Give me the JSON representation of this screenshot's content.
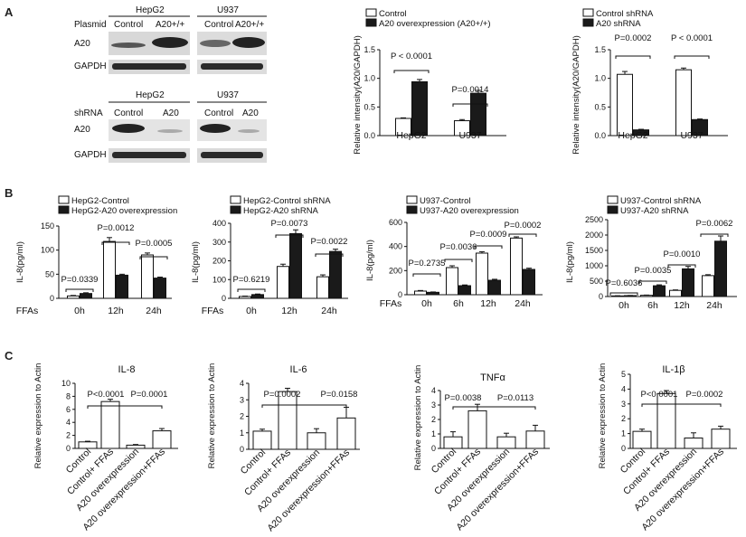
{
  "panel_labels": {
    "a": "A",
    "b": "B",
    "c": "C"
  },
  "colors": {
    "bar_open": "#ffffff",
    "bar_filled": "#1a1a1a",
    "axis": "#111111"
  },
  "blots": [
    {
      "labels": {
        "top_left": "HepG2",
        "top_right": "U937",
        "row_label": "Plasmid",
        "lane_labels": [
          "Control",
          "A20+/+",
          "Control",
          "A20+/+"
        ],
        "bands": [
          "A20",
          "GAPDH"
        ]
      }
    },
    {
      "labels": {
        "top_left": "HepG2",
        "top_right": "U937",
        "row_label": "shRNA",
        "lane_labels": [
          "Control",
          "A20",
          "Control",
          "A20"
        ],
        "bands": [
          "A20",
          "GAPDH"
        ]
      }
    }
  ],
  "chart_data": [
    {
      "id": "A_over",
      "type": "bar",
      "ylabel": "Relative intensity(A20/GAPDH)",
      "categories": [
        "HepG2",
        "U937"
      ],
      "ylim": [
        0,
        1.5
      ],
      "yticks": [
        "0.0",
        "0.5",
        "1.0",
        "1.5"
      ],
      "series": [
        {
          "name": "Control",
          "values": [
            0.3,
            0.26
          ],
          "errors": [
            0.01,
            0.02
          ]
        },
        {
          "name": "A20 overexpression (A20+/+)",
          "values": [
            0.94,
            0.74
          ],
          "errors": [
            0.04,
            0.05
          ]
        }
      ],
      "pvalues": [
        "P < 0.0001",
        "P=0.0014"
      ]
    },
    {
      "id": "A_sh",
      "type": "bar",
      "ylabel": "Relative intensity(A20/GAPDH)",
      "categories": [
        "HepG2",
        "U937"
      ],
      "ylim": [
        0,
        1.5
      ],
      "yticks": [
        "0.0",
        "0.5",
        "1.0",
        "1.5"
      ],
      "series": [
        {
          "name": "Control shRNA",
          "values": [
            1.07,
            1.15
          ],
          "errors": [
            0.05,
            0.03
          ]
        },
        {
          "name": "A20 shRNA",
          "values": [
            0.1,
            0.28
          ],
          "errors": [
            0.01,
            0.01
          ]
        }
      ],
      "pvalues": [
        "P=0.0002",
        "P < 0.0001"
      ]
    },
    {
      "id": "B1",
      "type": "bar",
      "ylabel": "IL-8(pg/ml)",
      "xprefix": "FFAs",
      "categories": [
        "0h",
        "12h",
        "24h"
      ],
      "ylim": [
        0,
        150
      ],
      "yticks": [
        "0",
        "50",
        "100",
        "150"
      ],
      "series": [
        {
          "name": "HepG2-Control",
          "values": [
            5,
            118,
            90
          ],
          "errors": [
            1,
            8,
            4
          ]
        },
        {
          "name": "HepG2-A20 overexpression",
          "values": [
            10,
            48,
            42
          ],
          "errors": [
            1.5,
            2,
            2
          ]
        }
      ],
      "pvalues": [
        "P=0.0339",
        "P=0.0012",
        "P=0.0005"
      ]
    },
    {
      "id": "B2",
      "type": "bar",
      "ylabel": "IL-8(pg/ml)",
      "xprefix": "FFAs",
      "categories": [
        "0h",
        "12h",
        "24h"
      ],
      "ylim": [
        0,
        400
      ],
      "yticks": [
        "0",
        "100",
        "200",
        "300",
        "400"
      ],
      "series": [
        {
          "name": "HepG2-Control shRNA",
          "values": [
            10,
            170,
            115
          ],
          "errors": [
            2,
            12,
            10
          ]
        },
        {
          "name": "HepG2-A20 shRNA",
          "values": [
            20,
            345,
            250
          ],
          "errors": [
            3,
            20,
            12
          ]
        }
      ],
      "pvalues": [
        "P=0.6219",
        "P=0.0073",
        "P=0.0022"
      ]
    },
    {
      "id": "B3",
      "type": "bar",
      "ylabel": "IL-8(pg/ml)",
      "xprefix": "FFAs",
      "categories": [
        "0h",
        "6h",
        "12h",
        "24h"
      ],
      "ylim": [
        0,
        600
      ],
      "yticks": [
        "0",
        "200",
        "400",
        "600"
      ],
      "series": [
        {
          "name": "U937-Control",
          "values": [
            30,
            225,
            345,
            470
          ],
          "errors": [
            5,
            15,
            12,
            10
          ]
        },
        {
          "name": "U937-A20 overexpression",
          "values": [
            20,
            75,
            120,
            210
          ],
          "errors": [
            3,
            6,
            8,
            10
          ]
        }
      ],
      "pvalues": [
        "P=0.2735",
        "P=0.0036",
        "P=0.0009",
        "P=0.0002"
      ]
    },
    {
      "id": "B4",
      "type": "bar",
      "ylabel": "IL-8(pg/ml)",
      "categories": [
        "0h",
        "6h",
        "12h",
        "24h"
      ],
      "ylim": [
        0,
        2500
      ],
      "yticks": [
        "0",
        "500",
        "1000",
        "1500",
        "2000",
        "2500"
      ],
      "series": [
        {
          "name": "U937-Control shRNA",
          "values": [
            20,
            40,
            200,
            680
          ],
          "errors": [
            5,
            8,
            15,
            30
          ]
        },
        {
          "name": "U937-A20 shRNA",
          "values": [
            30,
            350,
            900,
            1800
          ],
          "errors": [
            5,
            30,
            80,
            170
          ]
        }
      ],
      "pvalues": [
        "P=0.6036",
        "P=0.0035",
        "P=0.0010",
        "P=0.0062"
      ]
    },
    {
      "id": "C1",
      "type": "bar",
      "title": "IL-8",
      "ylabel": "Relative expression to Actin",
      "categories": [
        "Control",
        "Control+ FFAs",
        "A20 overexpression",
        "A20 overexpression+FFAs"
      ],
      "ylim": [
        0,
        10
      ],
      "yticks": [
        "0",
        "2",
        "4",
        "6",
        "8",
        "10"
      ],
      "values": [
        1.0,
        7.2,
        0.5,
        2.7
      ],
      "errors": [
        0.1,
        0.35,
        0.1,
        0.35
      ],
      "pvalues": [
        "P<0.0001",
        "P=0.0001"
      ]
    },
    {
      "id": "C2",
      "type": "bar",
      "title": "IL-6",
      "ylabel": "Relative expression to Actin",
      "categories": [
        "Control",
        "Control+ FFAs",
        "A20 overexpression",
        "A20 overexpression+FFAs"
      ],
      "ylim": [
        0,
        4
      ],
      "yticks": [
        "0",
        "1",
        "2",
        "3",
        "4"
      ],
      "values": [
        1.1,
        3.5,
        1.0,
        1.9
      ],
      "errors": [
        0.12,
        0.2,
        0.25,
        0.65
      ],
      "pvalues": [
        "P=0.0002",
        "P=0.0158"
      ]
    },
    {
      "id": "C3",
      "type": "bar",
      "title": "TNFα",
      "ylabel": "Relative expression to Actin",
      "categories": [
        "Control",
        "Control+ FFAs",
        "A20 overexpression",
        "A20 overexpression+FFAs"
      ],
      "ylim": [
        0,
        4
      ],
      "yticks": [
        "0",
        "1",
        "2",
        "3",
        "4"
      ],
      "values": [
        0.8,
        2.6,
        0.8,
        1.2
      ],
      "errors": [
        0.35,
        0.45,
        0.25,
        0.4
      ],
      "pvalues": [
        "P=0.0038",
        "P=0.0113"
      ]
    },
    {
      "id": "C4",
      "type": "bar",
      "title": "IL-1β",
      "ylabel": "Relative expression to Actin",
      "categories": [
        "Control",
        "Control+ FFAs",
        "A20 overexpression",
        "A20 overexpression+FFAs"
      ],
      "ylim": [
        0,
        5
      ],
      "yticks": [
        "0",
        "1",
        "2",
        "3",
        "4",
        "5"
      ],
      "values": [
        1.15,
        3.7,
        0.7,
        1.3
      ],
      "errors": [
        0.15,
        0.2,
        0.35,
        0.2
      ],
      "pvalues": [
        "P<0.0001",
        "P=0.0002"
      ]
    }
  ]
}
